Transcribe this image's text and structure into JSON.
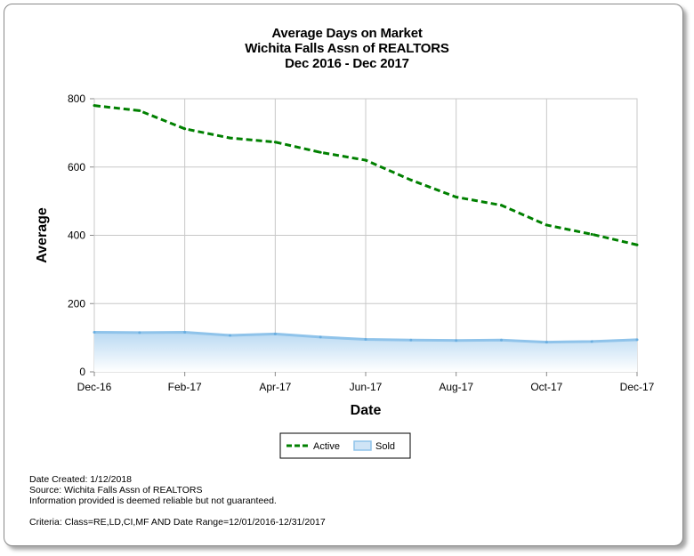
{
  "chart_data": {
    "type": "line",
    "title": "Average Days on Market",
    "subtitle": "Wichita Falls Assn of REALTORS",
    "date_range": "Dec 2016 - Dec 2017",
    "xlabel": "Date",
    "ylabel": "Average",
    "ylim": [
      0,
      800
    ],
    "yticks": [
      0,
      200,
      400,
      600,
      800
    ],
    "categories": [
      "Dec-16",
      "Jan-17",
      "Feb-17",
      "Mar-17",
      "Apr-17",
      "May-17",
      "Jun-17",
      "Jul-17",
      "Aug-17",
      "Sep-17",
      "Oct-17",
      "Nov-17",
      "Dec-17"
    ],
    "xtick_labels": [
      "Dec-16",
      "Feb-17",
      "Apr-17",
      "Jun-17",
      "Aug-17",
      "Oct-17",
      "Dec-17"
    ],
    "grid": true,
    "legend_position": "bottom-center",
    "series": [
      {
        "name": "Active",
        "style": "dashed-line",
        "color": "#008000",
        "values": [
          780,
          765,
          712,
          685,
          673,
          643,
          620,
          562,
          512,
          488,
          430,
          403,
          372
        ]
      },
      {
        "name": "Sold",
        "style": "area",
        "color": "#8fc3ea",
        "values": [
          116,
          115,
          116,
          107,
          111,
          102,
          95,
          93,
          92,
          93,
          87,
          89,
          94
        ]
      }
    ]
  },
  "footer": {
    "date_created": "Date Created: 1/12/2018",
    "source": "Source: Wichita Falls Assn of REALTORS",
    "disclaimer": "Information provided is deemed reliable but not guaranteed.",
    "criteria": "Criteria: Class=RE,LD,CI,MF AND Date Range=12/01/2016-12/31/2017"
  }
}
